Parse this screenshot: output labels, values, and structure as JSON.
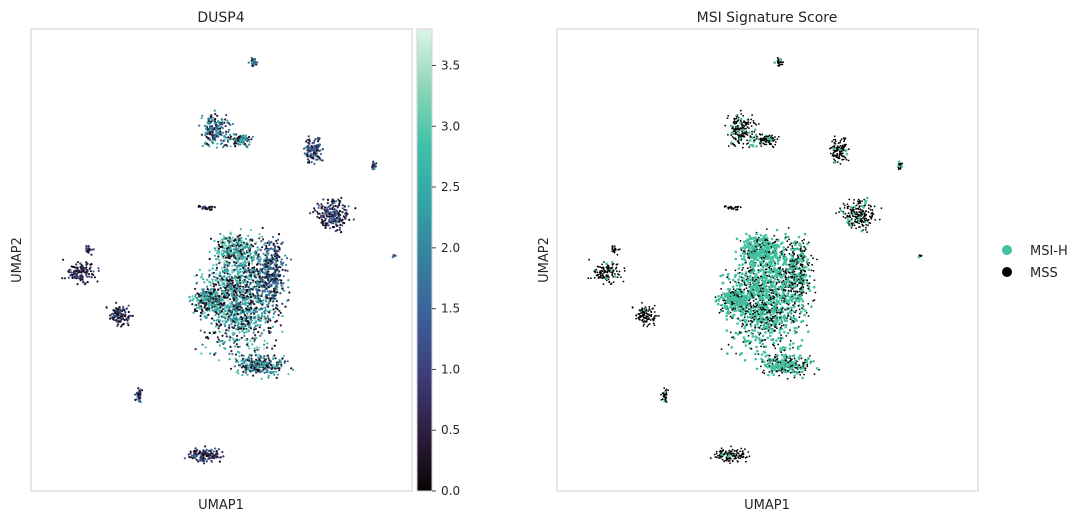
{
  "chart_data": [
    {
      "type": "scatter",
      "title": "DUSP4",
      "xlabel": "UMAP1",
      "ylabel": "UMAP2",
      "colorbar": {
        "min": 0.0,
        "max": 3.8,
        "ticks": [
          "0.0",
          "0.5",
          "1.0",
          "1.5",
          "2.0",
          "2.5",
          "3.0",
          "3.5"
        ],
        "colormap": "mako",
        "stops": [
          "#0b0405",
          "#2d1e3e",
          "#3d3d7a",
          "#3b5f99",
          "#37809f",
          "#33a4a6",
          "#40c1a9",
          "#8dd6b6",
          "#def5e5"
        ]
      },
      "grid": false
    },
    {
      "type": "scatter",
      "title": "MSI Signature Score",
      "xlabel": "UMAP1",
      "ylabel": "UMAP2",
      "legend": {
        "placement": "right",
        "entries": [
          {
            "label": "MSI-H",
            "color": "#45c0a0"
          },
          {
            "label": "MSS",
            "color": "#000000"
          }
        ]
      },
      "grid": false
    }
  ]
}
